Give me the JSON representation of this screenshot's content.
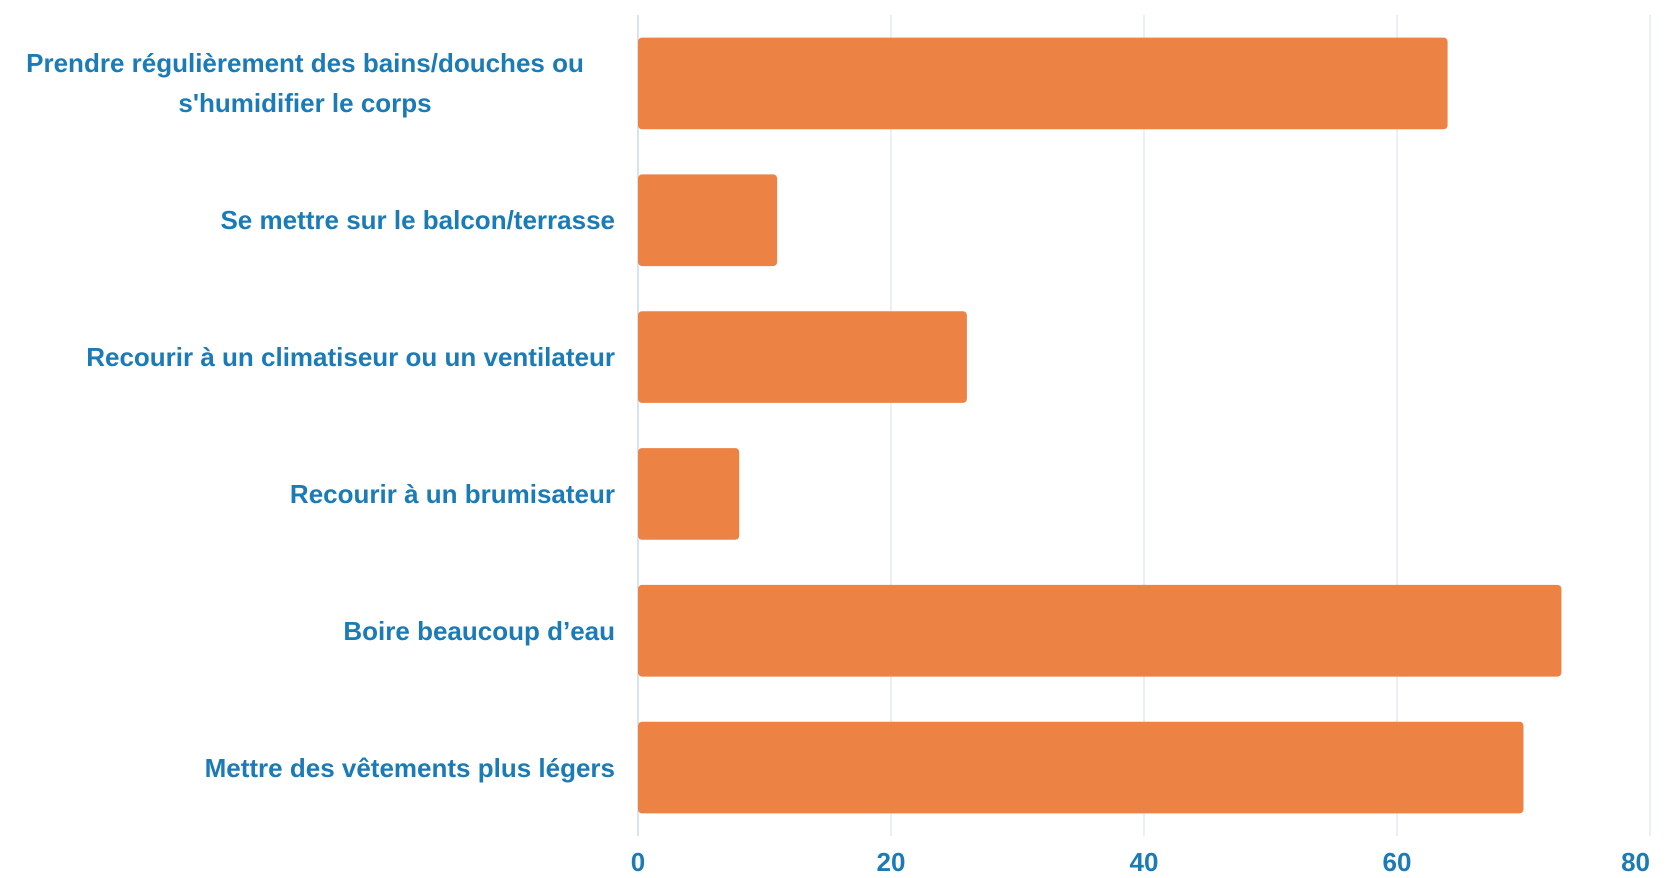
{
  "chart_data": {
    "type": "bar",
    "orientation": "horizontal",
    "categories": [
      "Prendre régulièrement des bains/douches ou s'humidifier le corps",
      "Se mettre sur le balcon/terrasse",
      "Recourir à un climatiseur ou un ventilateur",
      "Recourir à un brumisateur",
      "Boire beaucoup d’eau",
      "Mettre des vêtements plus légers"
    ],
    "values": [
      64,
      11,
      26,
      8,
      73,
      70
    ],
    "color": "#ec8244",
    "xlim": [
      0,
      80
    ],
    "xticks": [
      0,
      20,
      40,
      60,
      80
    ],
    "grid": true
  }
}
